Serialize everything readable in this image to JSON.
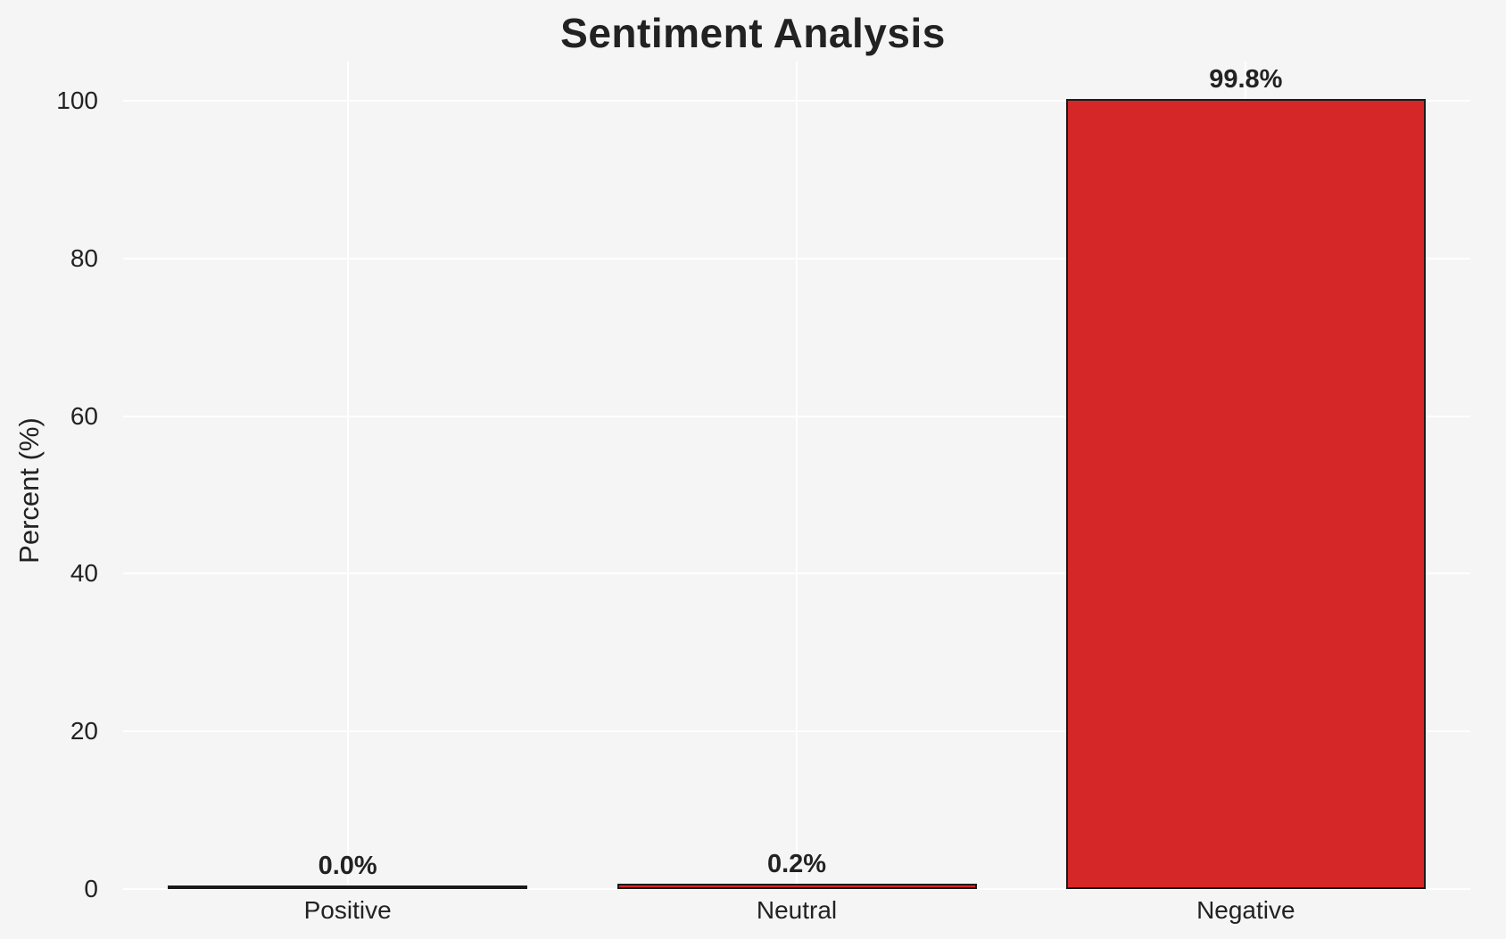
{
  "chart_data": {
    "type": "bar",
    "title": "Sentiment Analysis",
    "xlabel": "",
    "ylabel": "Percent (%)",
    "categories": [
      "Positive",
      "Neutral",
      "Negative"
    ],
    "values": [
      0.0,
      0.2,
      99.8
    ],
    "value_labels": [
      "0.0%",
      "0.2%",
      "99.8%"
    ],
    "yticks": [
      0,
      20,
      40,
      60,
      80,
      100
    ],
    "ytick_labels": [
      "0",
      "20",
      "40",
      "60",
      "80",
      "100"
    ],
    "ylim": [
      0,
      105
    ],
    "grid": true,
    "legend": false
  },
  "colors": {
    "background": "#f5f5f5",
    "gridline": "#ffffff",
    "bar_fill": "#d62728",
    "bar_edge": "#1a1a1a",
    "text": "#222222"
  }
}
